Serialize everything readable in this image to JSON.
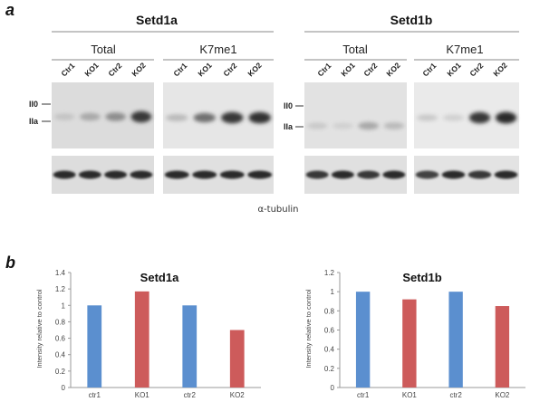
{
  "panel_a": {
    "label": "a",
    "groups": [
      {
        "title": "Setd1a",
        "subgroups": [
          {
            "title": "Total",
            "lanes": [
              "Ctr1",
              "KO1",
              "Ctr2",
              "KO2"
            ],
            "bands": [
              0.18,
              0.3,
              0.42,
              0.8
            ],
            "tubulin": [
              0.85,
              0.85,
              0.85,
              0.85
            ]
          },
          {
            "title": "K7me1",
            "lanes": [
              "Ctr1",
              "KO1",
              "Ctr2",
              "KO2"
            ],
            "bands": [
              0.22,
              0.55,
              0.8,
              0.82
            ],
            "tubulin": [
              0.85,
              0.85,
              0.85,
              0.85
            ]
          }
        ],
        "band_labels": [
          "II0",
          "IIa"
        ]
      },
      {
        "title": "Setd1b",
        "subgroups": [
          {
            "title": "Total",
            "lanes": [
              "Ctr1",
              "KO1",
              "Ctr2",
              "KO2"
            ],
            "bands": [
              0.15,
              0.12,
              0.3,
              0.22
            ],
            "tubulin": [
              0.8,
              0.85,
              0.8,
              0.85
            ]
          },
          {
            "title": "K7me1",
            "lanes": [
              "Ctr1",
              "KO1",
              "Ctr2",
              "KO2"
            ],
            "bands": [
              0.15,
              0.12,
              0.8,
              0.85
            ],
            "tubulin": [
              0.75,
              0.85,
              0.8,
              0.85
            ]
          }
        ],
        "band_labels": [
          "II0",
          "IIa"
        ]
      }
    ],
    "loading_label": "α-tubulin"
  },
  "panel_b": {
    "label": "b",
    "colors": {
      "ctr": "#5b8fcf",
      "ko": "#cd5b5b"
    }
  },
  "chart_data": [
    {
      "type": "bar",
      "title": "Setd1a",
      "categories": [
        "ctr1",
        "KO1",
        "ctr2",
        "KO2"
      ],
      "values": [
        1.0,
        1.17,
        1.0,
        0.7
      ],
      "ylabel": "Intensity relative to control",
      "ylim": [
        0,
        1.4
      ],
      "yticks": [
        "0",
        "0.2",
        "0.4",
        "0.6",
        "0.8",
        "1",
        "1.2",
        "1.4"
      ],
      "grid": false
    },
    {
      "type": "bar",
      "title": "Setd1b",
      "categories": [
        "ctr1",
        "KO1",
        "ctr2",
        "KO2"
      ],
      "values": [
        1.0,
        0.92,
        1.0,
        0.85
      ],
      "ylabel": "Intensity relative to control",
      "ylim": [
        0,
        1.2
      ],
      "yticks": [
        "0",
        "0.2",
        "0.4",
        "0.6",
        "0.8",
        "1",
        "1.2"
      ],
      "grid": false
    }
  ]
}
